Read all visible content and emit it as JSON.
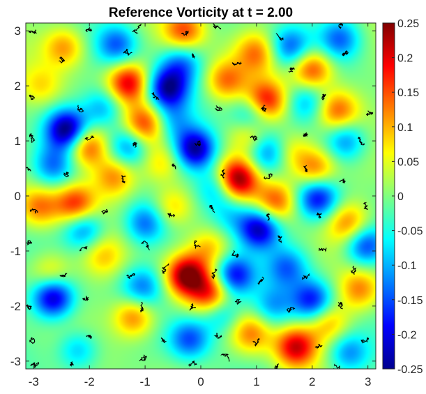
{
  "chart_data": {
    "type": "heatmap",
    "title": "Reference Vorticity at t = 2.00",
    "xlabel": "",
    "ylabel": "",
    "xlim": [
      -3.14159,
      3.14159
    ],
    "ylim": [
      -3.14159,
      3.14159
    ],
    "x_ticks": [
      "-3",
      "-2",
      "-1",
      "0",
      "1",
      "2",
      "3"
    ],
    "y_ticks": [
      "3",
      "2",
      "1",
      "0",
      "-1",
      "-2",
      "-3"
    ],
    "x_tick_values": [
      -3,
      -2,
      -1,
      0,
      1,
      2,
      3
    ],
    "y_tick_values": [
      3,
      2,
      1,
      0,
      -1,
      -2,
      -3
    ],
    "colormap": "jet",
    "clim": [
      -0.25,
      0.25
    ],
    "colorbar": {
      "placement": "right",
      "ticks": [
        "0.25",
        "0.2",
        "0.15",
        "0.1",
        "0.05",
        "0",
        "-0.05",
        "-0.1",
        "-0.15",
        "-0.2",
        "-0.25"
      ],
      "tick_values": [
        0.25,
        0.2,
        0.15,
        0.1,
        0.05,
        0,
        -0.05,
        -0.1,
        -0.15,
        -0.2,
        -0.25
      ]
    },
    "grid": false,
    "vortices": [
      {
        "x": 0.65,
        "y": 0.3,
        "value": 0.25
      },
      {
        "x": -0.25,
        "y": -1.45,
        "value": 0.25
      },
      {
        "x": 1.15,
        "y": 1.7,
        "value": 0.22
      },
      {
        "x": 1.7,
        "y": -2.75,
        "value": 0.2
      },
      {
        "x": -1.3,
        "y": 2.05,
        "value": 0.2
      },
      {
        "x": 2.0,
        "y": 2.3,
        "value": 0.17
      },
      {
        "x": -2.05,
        "y": 0.9,
        "value": 0.17
      },
      {
        "x": -2.25,
        "y": -0.15,
        "value": 0.17
      },
      {
        "x": 0.2,
        "y": -1.8,
        "value": 0.18
      },
      {
        "x": -1.0,
        "y": 1.3,
        "value": 0.16
      },
      {
        "x": 1.35,
        "y": -0.1,
        "value": 0.15
      },
      {
        "x": 2.05,
        "y": 0.5,
        "value": 0.14
      },
      {
        "x": -0.3,
        "y": 3.0,
        "value": 0.15
      },
      {
        "x": 0.45,
        "y": 2.1,
        "value": 0.13
      },
      {
        "x": -1.2,
        "y": -2.2,
        "value": 0.14
      },
      {
        "x": 2.45,
        "y": 1.55,
        "value": 0.14
      },
      {
        "x": 0.9,
        "y": -2.5,
        "value": 0.13
      },
      {
        "x": -2.9,
        "y": -0.2,
        "value": 0.13
      },
      {
        "x": -1.55,
        "y": 0.35,
        "value": 0.12
      },
      {
        "x": 1.0,
        "y": 2.6,
        "value": 0.12
      },
      {
        "x": 2.85,
        "y": -1.7,
        "value": 0.12
      },
      {
        "x": 2.65,
        "y": -0.5,
        "value": 0.12
      },
      {
        "x": -0.5,
        "y": -0.2,
        "value": 0.1
      },
      {
        "x": 0.15,
        "y": -0.95,
        "value": 0.09
      },
      {
        "x": -2.45,
        "y": 2.7,
        "value": 0.12
      },
      {
        "x": 0.9,
        "y": 1.1,
        "value": 0.1
      },
      {
        "x": 2.3,
        "y": -2.3,
        "value": 0.1
      },
      {
        "x": -2.7,
        "y": -1.4,
        "value": 0.09
      },
      {
        "x": -1.75,
        "y": -1.1,
        "value": 0.08
      },
      {
        "x": 1.6,
        "y": 0.8,
        "value": 0.09
      },
      {
        "x": -2.85,
        "y": 2.0,
        "value": 0.07
      },
      {
        "x": -0.7,
        "y": 0.6,
        "value": 0.08
      },
      {
        "x": -2.4,
        "y": 1.2,
        "value": -0.25
      },
      {
        "x": -0.1,
        "y": 0.85,
        "value": -0.24
      },
      {
        "x": -0.6,
        "y": 1.95,
        "value": -0.22
      },
      {
        "x": 1.05,
        "y": -0.6,
        "value": -0.22
      },
      {
        "x": -2.65,
        "y": -1.85,
        "value": -0.22
      },
      {
        "x": 0.6,
        "y": -1.45,
        "value": -0.2
      },
      {
        "x": 2.1,
        "y": -0.05,
        "value": -0.19
      },
      {
        "x": 2.0,
        "y": -1.9,
        "value": -0.18
      },
      {
        "x": 2.95,
        "y": -0.9,
        "value": -0.17
      },
      {
        "x": 1.2,
        "y": 0.8,
        "value": -0.14
      },
      {
        "x": 0.95,
        "y": 1.5,
        "value": -0.15
      },
      {
        "x": -1.5,
        "y": 2.75,
        "value": -0.14
      },
      {
        "x": -0.2,
        "y": -2.6,
        "value": -0.15
      },
      {
        "x": 1.6,
        "y": 2.7,
        "value": -0.14
      },
      {
        "x": 2.5,
        "y": 2.85,
        "value": -0.13
      },
      {
        "x": -2.1,
        "y": -0.6,
        "value": -0.14
      },
      {
        "x": -1.0,
        "y": -0.5,
        "value": -0.13
      },
      {
        "x": -1.3,
        "y": 0.9,
        "value": -0.14
      },
      {
        "x": 0.3,
        "y": 0.15,
        "value": -0.12
      },
      {
        "x": -0.35,
        "y": 2.4,
        "value": -0.12
      },
      {
        "x": 2.6,
        "y": 1.0,
        "value": -0.13
      },
      {
        "x": -1.05,
        "y": -1.65,
        "value": -0.12
      },
      {
        "x": 0.35,
        "y": -2.1,
        "value": -0.12
      },
      {
        "x": 1.55,
        "y": -1.3,
        "value": -0.12
      },
      {
        "x": -2.65,
        "y": 0.55,
        "value": -0.12
      },
      {
        "x": -1.75,
        "y": 1.6,
        "value": -0.11
      },
      {
        "x": 2.65,
        "y": -2.85,
        "value": -0.12
      },
      {
        "x": -0.5,
        "y": 1.35,
        "value": -0.09
      },
      {
        "x": 1.9,
        "y": 1.7,
        "value": -0.1
      },
      {
        "x": -2.2,
        "y": -2.8,
        "value": -0.1
      },
      {
        "x": 0.55,
        "y": -0.35,
        "value": -0.08
      },
      {
        "x": 1.3,
        "y": -2.0,
        "value": -0.1
      }
    ],
    "particles": [
      [
        -3.05,
        3.0
      ],
      [
        -2.05,
        3.0
      ],
      [
        -1.1,
        3.05
      ],
      [
        -0.35,
        2.95
      ],
      [
        0.35,
        3.05
      ],
      [
        1.35,
        2.95
      ],
      [
        2.5,
        3.05
      ],
      [
        -2.55,
        2.45
      ],
      [
        -1.3,
        2.55
      ],
      [
        -0.15,
        2.55
      ],
      [
        0.65,
        2.4
      ],
      [
        1.6,
        2.3
      ],
      [
        2.55,
        2.55
      ],
      [
        -3.05,
        1.75
      ],
      [
        -2.2,
        1.65
      ],
      [
        -0.75,
        1.75
      ],
      [
        0.35,
        1.6
      ],
      [
        1.1,
        1.6
      ],
      [
        2.2,
        1.8
      ],
      [
        3.0,
        1.55
      ],
      [
        -3.05,
        1.1
      ],
      [
        -2.05,
        1.05
      ],
      [
        -1.15,
        0.95
      ],
      [
        -0.1,
        0.95
      ],
      [
        0.9,
        1.05
      ],
      [
        1.9,
        1.15
      ],
      [
        2.85,
        1.05
      ],
      [
        -3.05,
        0.45
      ],
      [
        -2.4,
        0.4
      ],
      [
        -1.35,
        0.35
      ],
      [
        -0.5,
        0.55
      ],
      [
        0.4,
        0.45
      ],
      [
        1.15,
        0.35
      ],
      [
        1.9,
        0.55
      ],
      [
        2.55,
        0.3
      ],
      [
        -3.05,
        -0.25
      ],
      [
        -1.7,
        -0.25
      ],
      [
        -0.55,
        -0.35
      ],
      [
        0.25,
        -0.3
      ],
      [
        1.2,
        -0.45
      ],
      [
        2.1,
        -0.3
      ],
      [
        3.0,
        -0.25
      ],
      [
        -3.05,
        -0.85
      ],
      [
        -2.05,
        -0.95
      ],
      [
        -1.05,
        -0.85
      ],
      [
        -0.1,
        -0.85
      ],
      [
        0.6,
        -1.0
      ],
      [
        1.45,
        -0.85
      ],
      [
        2.25,
        -0.95
      ],
      [
        -2.45,
        -1.45
      ],
      [
        -1.3,
        -1.45
      ],
      [
        -0.7,
        -1.35
      ],
      [
        0.2,
        -1.45
      ],
      [
        1.05,
        -1.55
      ],
      [
        1.95,
        -1.45
      ],
      [
        2.7,
        -1.35
      ],
      [
        -3.05,
        -2.05
      ],
      [
        -2.1,
        -1.9
      ],
      [
        -1.05,
        -2.05
      ],
      [
        -0.15,
        -2.05
      ],
      [
        0.65,
        -1.95
      ],
      [
        1.65,
        -2.05
      ],
      [
        2.55,
        -2.05
      ],
      [
        -3.05,
        -2.6
      ],
      [
        -2.05,
        -2.55
      ],
      [
        -0.7,
        -2.65
      ],
      [
        0.3,
        -2.5
      ],
      [
        1.05,
        -2.6
      ],
      [
        2.05,
        -2.75
      ],
      [
        3.0,
        -2.6
      ],
      [
        -3.0,
        -3.05
      ],
      [
        -2.3,
        -3.05
      ],
      [
        -1.1,
        -3.0
      ],
      [
        -0.2,
        -3.05
      ],
      [
        0.5,
        -3.0
      ],
      [
        1.4,
        -3.05
      ],
      [
        2.4,
        -3.05
      ]
    ]
  }
}
